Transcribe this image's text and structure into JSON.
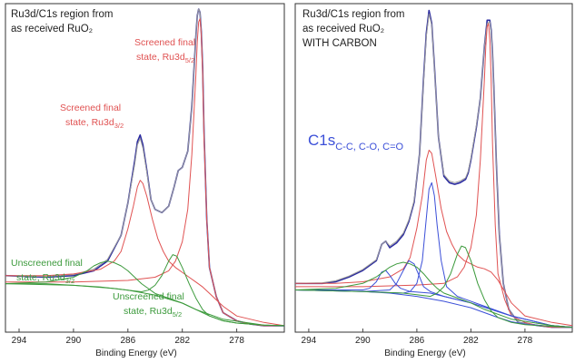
{
  "chart_data": [
    {
      "type": "line",
      "title_lines": [
        "Ru3d/C1s region from",
        "as received RuO₂"
      ],
      "xlabel": "Binding Energy (eV)",
      "ylabel": "",
      "xlim": [
        295,
        274.5
      ],
      "ylim": [
        0,
        100
      ],
      "x_reversed": true,
      "grid": false,
      "xticks": [
        294,
        290,
        286,
        282,
        278
      ],
      "xtick_labels": [
        "294",
        "290",
        "286",
        "282",
        "278"
      ],
      "annotations": [
        {
          "line1": "Screened final",
          "line2": "state, Ru3d",
          "sub": "5/2",
          "color": "#e05252"
        },
        {
          "line1": "Screened final",
          "line2": "state, Ru3d",
          "sub": "3/2",
          "color": "#e05252"
        },
        {
          "line1": "Unscreened final",
          "line2": "state, Ru3d",
          "sub": "3/2",
          "color": "#3c9a3c"
        },
        {
          "line1": "Unscreened final",
          "line2": "state, Ru3d",
          "sub": "5/2",
          "color": "#3c9a3c"
        }
      ],
      "series": [
        {
          "color": "#2a2aa0",
          "role": "measured",
          "x": [
            295,
            292,
            290,
            288.5,
            287.5,
            286.5,
            286,
            285.5,
            285.3,
            285.1,
            284.9,
            284.6,
            284.3,
            284,
            283.5,
            283,
            282.6,
            282.3,
            282,
            281.6,
            281.3,
            281,
            280.9,
            280.8,
            280.7,
            280.6,
            280.5,
            280.4,
            280.2,
            280,
            279.5,
            279,
            278,
            277,
            276,
            274.5
          ],
          "y": [
            17.5,
            17,
            17.5,
            19,
            22,
            30,
            40,
            53,
            59,
            61,
            58,
            50,
            41,
            38,
            37,
            39,
            45,
            50,
            51,
            56,
            70,
            92,
            98,
            100,
            99,
            93,
            82,
            62,
            35,
            20,
            11,
            6,
            3.5,
            2.5,
            2,
            2
          ]
        },
        {
          "color": "#9a9a9a",
          "role": "envelope",
          "x": [
            295,
            292,
            290,
            288.5,
            287.5,
            286.5,
            286,
            285.5,
            285.3,
            285.1,
            284.9,
            284.6,
            284.3,
            284,
            283.5,
            283,
            282.6,
            282.3,
            282,
            281.6,
            281.3,
            281,
            280.9,
            280.8,
            280.7,
            280.6,
            280.5,
            280.4,
            280.2,
            280,
            279.5,
            279,
            278,
            277,
            276,
            274.5
          ],
          "y": [
            17.5,
            17.2,
            17.8,
            19.5,
            22.5,
            30,
            40,
            52,
            58,
            60,
            57,
            49.5,
            41,
            38,
            37,
            39,
            45,
            50,
            51,
            56,
            70,
            92,
            98,
            100,
            99,
            93,
            82,
            62,
            35,
            20,
            11,
            6,
            3.5,
            2.5,
            2,
            2
          ]
        },
        {
          "color": "#e05252",
          "role": "screened-3d3/2",
          "x": [
            295,
            292,
            290,
            288,
            287,
            286.5,
            286,
            285.6,
            285.3,
            285.1,
            284.9,
            284.6,
            284.2,
            283.8,
            283.4,
            283,
            282.5,
            282,
            281.5,
            281,
            280.5,
            280,
            279,
            278,
            276,
            274.5
          ],
          "y": [
            17.5,
            17.5,
            18,
            19.5,
            22,
            25,
            32,
            39,
            45,
            47,
            46,
            42,
            35,
            29,
            25,
            22,
            20,
            18.5,
            17,
            15.5,
            14,
            12,
            8,
            5,
            3,
            2
          ]
        },
        {
          "color": "#e05252",
          "role": "screened-3d5/2",
          "x": [
            295,
            290,
            286,
            284,
            283,
            282.5,
            282,
            281.6,
            281.3,
            281,
            280.9,
            280.8,
            280.7,
            280.6,
            280.5,
            280.4,
            280.2,
            280,
            279.5,
            279,
            278,
            277,
            276,
            274.5
          ],
          "y": [
            15.5,
            15.5,
            16,
            17,
            19,
            22,
            28,
            38,
            55,
            80,
            90,
            96,
            97,
            92,
            80,
            60,
            35,
            20,
            11,
            6,
            3.5,
            2.5,
            2,
            2
          ]
        },
        {
          "color": "#3c9a3c",
          "role": "background",
          "x": [
            295,
            292,
            290,
            288,
            286,
            284,
            282,
            281,
            280,
            279,
            278,
            276,
            274.5
          ],
          "y": [
            15,
            15,
            14.5,
            14,
            13,
            11.5,
            9,
            7,
            5,
            3.5,
            2.8,
            2.2,
            2
          ]
        },
        {
          "color": "#3c9a3c",
          "role": "unscreened-3d3/2",
          "x": [
            295,
            292,
            290,
            289,
            288.5,
            288,
            287.5,
            287,
            286.5,
            286,
            285.5,
            285,
            284.5,
            284,
            283,
            282,
            281,
            279,
            276,
            274.5
          ],
          "y": [
            15,
            15.5,
            17,
            19,
            20.5,
            21.5,
            22,
            21.5,
            20.5,
            19,
            17,
            15,
            13.5,
            12,
            10.5,
            9,
            7,
            4,
            2.2,
            2
          ]
        },
        {
          "color": "#3c9a3c",
          "role": "unscreened-3d5/2",
          "x": [
            295,
            290,
            287,
            286,
            285,
            284.5,
            284,
            283.5,
            283,
            282.7,
            282.4,
            282,
            281.5,
            281,
            280.5,
            280,
            279,
            278,
            276,
            274.5
          ],
          "y": [
            15,
            14.5,
            13.5,
            13,
            12.5,
            13,
            14.5,
            17.5,
            22,
            24,
            23.5,
            20,
            15,
            10.5,
            7,
            5,
            3.5,
            2.8,
            2.2,
            2
          ]
        }
      ]
    },
    {
      "type": "line",
      "title_lines": [
        "Ru3d/C1s region from",
        "as received RuO₂"
      ],
      "subtitle": "WITH CARBON",
      "subtitle_color": "#3b4fd8",
      "xlabel": "Binding Energy (eV)",
      "ylabel": "",
      "xlim": [
        295,
        274.5
      ],
      "ylim": [
        0,
        100
      ],
      "x_reversed": true,
      "grid": false,
      "xticks": [
        294,
        290,
        286,
        282,
        278
      ],
      "xtick_labels": [
        "294",
        "290",
        "286",
        "282",
        "278"
      ],
      "c1s_label": {
        "main": "C1s",
        "sub": "C-C, C-O, C=O",
        "color": "#3b4fd8"
      },
      "series": [
        {
          "color": "#2a2aa0",
          "role": "measured",
          "x": [
            295,
            293,
            292,
            291,
            290,
            289,
            288.6,
            288.3,
            288,
            287.5,
            287,
            286.6,
            286.2,
            285.8,
            285.5,
            285.3,
            285.1,
            284.9,
            284.7,
            284.4,
            284,
            283.6,
            283.2,
            282.8,
            282.4,
            282.2,
            282,
            281.8,
            281.6,
            281.3,
            281,
            280.8,
            280.6,
            280.5,
            280.4,
            280.3,
            280.1,
            279.9,
            279.6,
            279.2,
            278.5,
            277,
            276,
            274.5
          ],
          "y": [
            15,
            15,
            15.5,
            17,
            19,
            22,
            27,
            28,
            26,
            27.5,
            30,
            34,
            40,
            55,
            78,
            92,
            99,
            95,
            82,
            60,
            48,
            46,
            45.5,
            46,
            47,
            49,
            53,
            58,
            63,
            72,
            88,
            96,
            96,
            93,
            86,
            75,
            50,
            30,
            15,
            7,
            3,
            2,
            1.5,
            1.5
          ]
        },
        {
          "color": "#9a9a9a",
          "role": "envelope",
          "x": [
            295,
            293,
            292,
            291,
            290,
            289,
            288.6,
            288.3,
            288,
            287.5,
            287,
            286.6,
            286.2,
            285.8,
            285.5,
            285.3,
            285.1,
            284.9,
            284.7,
            284.4,
            284,
            283.6,
            283.2,
            282.8,
            282.4,
            282.2,
            282,
            281.8,
            281.6,
            281.3,
            281,
            280.8,
            280.6,
            280.5,
            280.4,
            280.3,
            280.1,
            279.9,
            279.6,
            279.2,
            278.5,
            277,
            276,
            274.5
          ],
          "y": [
            15,
            15.2,
            15.8,
            17.3,
            19.3,
            22.3,
            27,
            28,
            26.5,
            28,
            30.5,
            34.5,
            40.5,
            55,
            77,
            91,
            98,
            94.5,
            81.5,
            60,
            48.5,
            46.5,
            46,
            46.5,
            47.5,
            49.5,
            53.5,
            58.5,
            63.5,
            72,
            88,
            95,
            95.5,
            92.5,
            86,
            75,
            50,
            30,
            15,
            7,
            3,
            2,
            1.5,
            1.5
          ]
        },
        {
          "color": "#e05252",
          "role": "screened-3d3/2",
          "x": [
            295,
            292,
            290,
            288,
            287,
            286.5,
            286,
            285.6,
            285.3,
            285.1,
            284.9,
            284.6,
            284.2,
            283.8,
            283.4,
            283,
            282.5,
            282,
            281.5,
            281,
            280.5,
            280,
            279,
            278,
            276,
            274.5
          ],
          "y": [
            15,
            15,
            15.5,
            17,
            19.5,
            23,
            32,
            42,
            53,
            56,
            55,
            48,
            38,
            31,
            27,
            24,
            22,
            21,
            20,
            19.5,
            18.5,
            16,
            9,
            5,
            3,
            2
          ]
        },
        {
          "color": "#e05252",
          "role": "screened-3d5/2",
          "x": [
            295,
            290,
            286,
            284,
            283,
            282.5,
            282,
            281.6,
            281.3,
            281,
            280.9,
            280.8,
            280.7,
            280.6,
            280.5,
            280.4,
            280.2,
            280,
            279.5,
            279,
            278,
            277,
            276,
            274.5
          ],
          "y": [
            14,
            14,
            14.5,
            15,
            17,
            20,
            26,
            36,
            53,
            78,
            88,
            94,
            95,
            90,
            78,
            58,
            33,
            18,
            10,
            5,
            3,
            2,
            1.5,
            1.5
          ]
        },
        {
          "color": "#3b4fd8",
          "role": "C-C",
          "x": [
            295,
            290,
            287,
            286.5,
            286,
            285.6,
            285.3,
            285.1,
            284.9,
            284.7,
            284.5,
            284.2,
            283.8,
            283,
            281,
            279,
            276,
            274.5
          ],
          "y": [
            13,
            12.5,
            12,
            12.5,
            15,
            22,
            35,
            44,
            46,
            42,
            33,
            22,
            14,
            11,
            8,
            5,
            2,
            1.5
          ]
        },
        {
          "color": "#3b4fd8",
          "role": "C-O",
          "x": [
            295,
            290,
            288,
            287.5,
            287,
            286.6,
            286.2,
            285.8,
            285.5,
            285,
            284,
            282,
            279,
            276,
            274.5
          ],
          "y": [
            13,
            12.5,
            13,
            15,
            19,
            22,
            21,
            17,
            14,
            12.5,
            11,
            9,
            5,
            2,
            1.5
          ]
        },
        {
          "color": "#3b4fd8",
          "role": "C=O",
          "x": [
            295,
            290,
            289.5,
            289,
            288.6,
            288.3,
            288,
            287.6,
            287.2,
            286.5,
            285,
            282,
            279,
            276,
            274.5
          ],
          "y": [
            13,
            13,
            13.5,
            15.5,
            18.5,
            19,
            17.5,
            15,
            13.5,
            12.5,
            12,
            9,
            5,
            2,
            1.5
          ]
        },
        {
          "color": "#3b4fd8",
          "role": "background",
          "x": [
            295,
            292,
            290,
            288,
            286,
            284,
            282,
            281,
            280,
            279,
            278,
            276,
            274.5
          ],
          "y": [
            13,
            12.8,
            12.5,
            12,
            11,
            9.5,
            7.5,
            6,
            4.5,
            3.2,
            2.5,
            1.8,
            1.5
          ]
        },
        {
          "color": "#3c9a3c",
          "role": "unscreened-3d3/2",
          "x": [
            295,
            292,
            290,
            289,
            288.5,
            288,
            287.5,
            287,
            286.5,
            286,
            285.5,
            285,
            284.5,
            284,
            283,
            282,
            281,
            279,
            276,
            274.5
          ],
          "y": [
            13,
            13.5,
            15,
            17,
            18.5,
            20,
            21,
            21.5,
            21,
            20,
            18,
            15.5,
            13.5,
            12,
            10.5,
            9,
            7,
            4,
            2,
            1.5
          ]
        },
        {
          "color": "#3c9a3c",
          "role": "unscreened-3d5/2",
          "x": [
            295,
            290,
            287,
            286,
            285,
            284.5,
            284,
            283.5,
            283,
            282.7,
            282.4,
            282,
            281.5,
            281,
            280.5,
            280,
            279,
            278,
            276,
            274.5
          ],
          "y": [
            13,
            12.5,
            12,
            11.5,
            11,
            12,
            14,
            18,
            24,
            26.5,
            26,
            22,
            15,
            10,
            6.5,
            4.5,
            3,
            2.3,
            1.8,
            1.5
          ]
        }
      ]
    }
  ]
}
